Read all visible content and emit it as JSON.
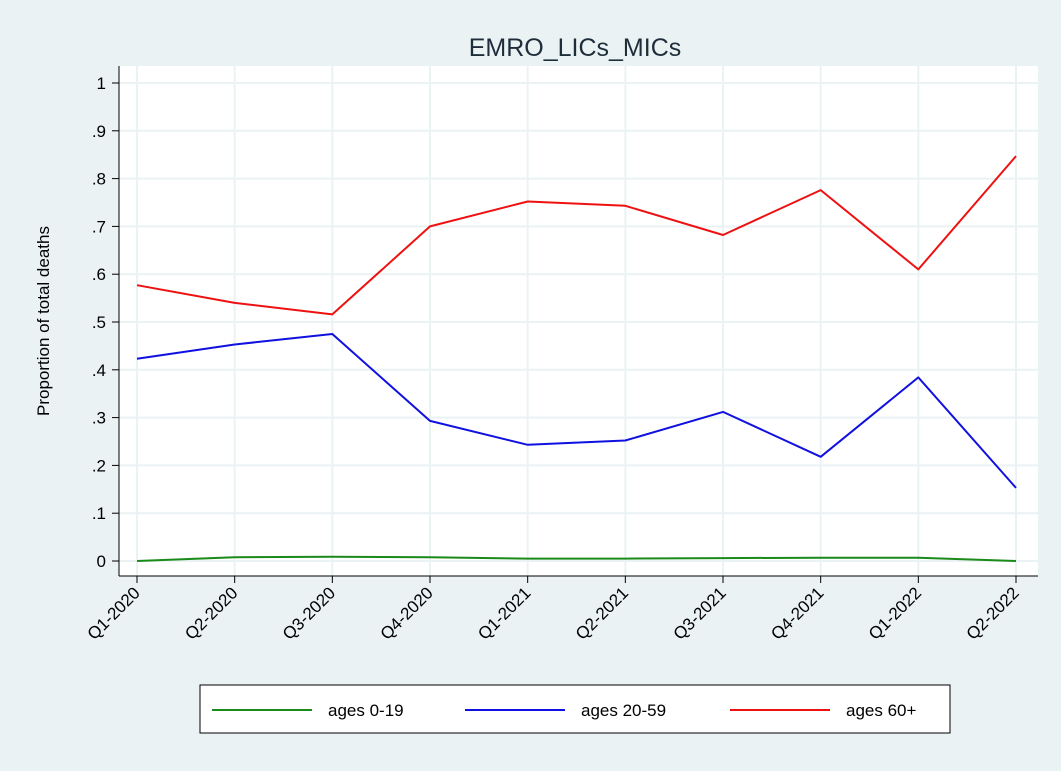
{
  "chart_data": {
    "type": "line",
    "title": "EMRO_LICs_MICs",
    "xlabel": "",
    "ylabel": "Proportion of total deaths",
    "categories": [
      "Q1-2020",
      "Q2-2020",
      "Q3-2020",
      "Q4-2020",
      "Q1-2021",
      "Q2-2021",
      "Q3-2021",
      "Q4-2021",
      "Q1-2022",
      "Q2-2022"
    ],
    "ylim": [
      0,
      1
    ],
    "yticks": [
      0,
      0.1,
      0.2,
      0.3,
      0.4,
      0.5,
      0.6,
      0.7,
      0.8,
      0.9,
      1
    ],
    "ytick_labels": [
      "0",
      ".1",
      ".2",
      ".3",
      ".4",
      ".5",
      ".6",
      ".7",
      ".8",
      ".9",
      "1"
    ],
    "grid": true,
    "legend_position": "bottom",
    "series": [
      {
        "name": "ages 0-19",
        "color": "#1a8a1a",
        "values": [
          0.0,
          0.008,
          0.009,
          0.008,
          0.005,
          0.005,
          0.006,
          0.007,
          0.007,
          0.0
        ]
      },
      {
        "name": "ages 20-59",
        "color": "#1010e0",
        "values": [
          0.423,
          0.453,
          0.475,
          0.293,
          0.243,
          0.252,
          0.312,
          0.218,
          0.384,
          0.153
        ]
      },
      {
        "name": "ages 60+",
        "color": "#ee1111",
        "values": [
          0.577,
          0.54,
          0.516,
          0.7,
          0.752,
          0.743,
          0.682,
          0.776,
          0.61,
          0.847
        ]
      }
    ]
  }
}
